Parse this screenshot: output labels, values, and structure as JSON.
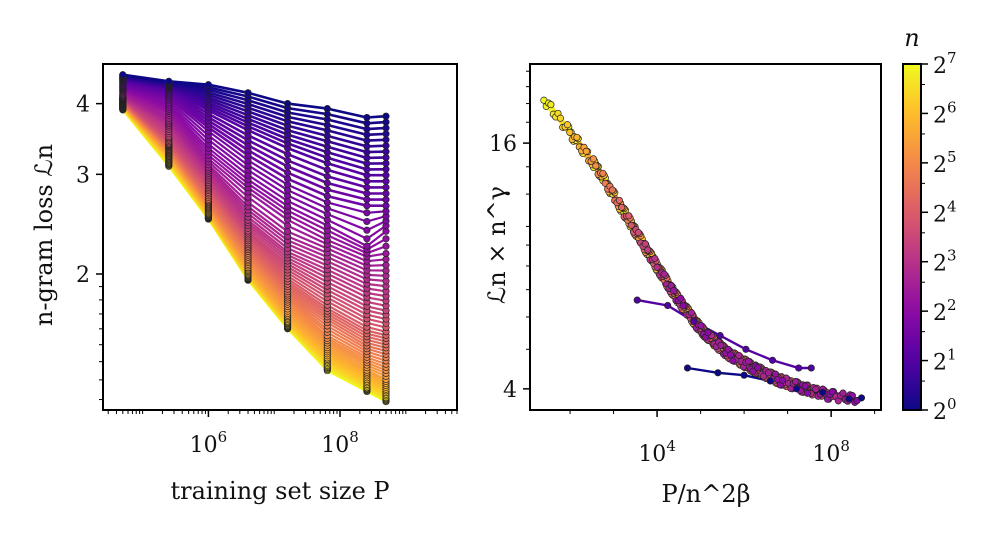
{
  "chart_data": [
    {
      "type": "line",
      "xlabel": "training set size P",
      "ylabel": "n-gram loss ℒn",
      "xscale": "log",
      "yscale": "log",
      "xlim": [
        25000.0,
        6000000000.0
      ],
      "ylim": [
        1.15,
        4.7
      ],
      "xticks": [
        {
          "base": "10",
          "exp": "6",
          "value": 1000000.0
        },
        {
          "base": "10",
          "exp": "8",
          "value": 100000000.0
        }
      ],
      "yticks": [
        {
          "label": "4",
          "value": 4
        },
        {
          "label": "3",
          "value": 3
        },
        {
          "label": "2",
          "value": 2
        }
      ],
      "x": [
        50000,
        250000,
        1000000,
        4000000,
        16000000,
        64000000,
        256000000,
        500000000
      ],
      "series": [
        {
          "n": 1,
          "values": [
            4.5,
            4.38,
            4.32,
            4.18,
            4.0,
            3.92,
            3.78,
            3.8
          ]
        },
        {
          "n": 2,
          "values": [
            4.4,
            4.25,
            3.9,
            3.6,
            3.35,
            3.15,
            3.0,
            3.0
          ]
        },
        {
          "n": 3,
          "values": [
            4.3,
            4.1,
            3.6,
            3.2,
            2.9,
            2.7,
            2.6,
            2.6
          ]
        },
        {
          "n": 4,
          "values": [
            4.25,
            3.95,
            3.35,
            2.95,
            2.65,
            2.45,
            2.25,
            2.4
          ]
        },
        {
          "n": 5,
          "values": [
            4.2,
            3.85,
            3.2,
            2.8,
            2.5,
            2.3,
            2.15,
            2.18
          ]
        },
        {
          "n": 6,
          "values": [
            4.15,
            3.75,
            3.1,
            2.65,
            2.35,
            2.2,
            2.05,
            2.05
          ]
        },
        {
          "n": 8,
          "values": [
            4.1,
            3.65,
            3.0,
            2.5,
            2.2,
            2.05,
            1.9,
            1.88
          ]
        },
        {
          "n": 11,
          "values": [
            4.08,
            3.5,
            2.9,
            2.38,
            2.08,
            1.9,
            1.75,
            1.72
          ]
        },
        {
          "n": 16,
          "values": [
            4.05,
            3.4,
            2.8,
            2.28,
            1.95,
            1.75,
            1.6,
            1.57
          ]
        },
        {
          "n": 23,
          "values": [
            4.02,
            3.35,
            2.7,
            2.2,
            1.85,
            1.65,
            1.5,
            1.47
          ]
        },
        {
          "n": 32,
          "values": [
            4.0,
            3.3,
            2.65,
            2.12,
            1.78,
            1.55,
            1.42,
            1.38
          ]
        },
        {
          "n": 45,
          "values": [
            3.98,
            3.25,
            2.6,
            2.05,
            1.7,
            1.48,
            1.35,
            1.3
          ]
        },
        {
          "n": 64,
          "values": [
            3.95,
            3.2,
            2.55,
            2.0,
            1.65,
            1.42,
            1.3,
            1.25
          ]
        },
        {
          "n": 90,
          "values": [
            3.93,
            3.15,
            2.52,
            1.97,
            1.62,
            1.38,
            1.26,
            1.21
          ]
        },
        {
          "n": 128,
          "values": [
            3.9,
            3.1,
            2.5,
            1.95,
            1.6,
            1.35,
            1.24,
            1.19
          ]
        }
      ]
    },
    {
      "type": "line",
      "xlabel": "P/n^2β",
      "ylabel": "ℒn × n^γ",
      "xscale": "log",
      "yscale": "log",
      "xlim": [
        12,
        1400000000.0
      ],
      "ylim": [
        3.55,
        25
      ],
      "xticks": [
        {
          "base": "10",
          "exp": "4",
          "value": 10000.0
        },
        {
          "base": "10",
          "exp": "8",
          "value": 100000000.0
        }
      ],
      "yticks": [
        {
          "label": "16",
          "value": 16
        },
        {
          "label": "4",
          "value": 4
        }
      ],
      "collapse_curve": {
        "x": [
          25,
          100,
          400,
          1600,
          6400,
          25600,
          100000,
          400000,
          1600000,
          6400000,
          25600000,
          100000000,
          400000000
        ],
        "y": [
          20.5,
          17.0,
          14.0,
          11.0,
          8.6,
          6.8,
          5.6,
          4.9,
          4.5,
          4.2,
          4.0,
          3.85,
          3.78
        ]
      },
      "series": [
        {
          "n": 1,
          "x": [
            50000,
            250000,
            1000000,
            4000000,
            16000000,
            64000000,
            256000000,
            500000000
          ],
          "y": [
            4.5,
            4.38,
            4.32,
            4.18,
            4.0,
            3.92,
            3.78,
            3.8
          ]
        },
        {
          "n": 2,
          "x": [
            3500,
            17500,
            70000,
            280000,
            1100000,
            4500000,
            18000000,
            35000000
          ],
          "y": [
            6.6,
            6.4,
            5.85,
            5.4,
            5.0,
            4.7,
            4.5,
            4.5
          ]
        }
      ]
    }
  ],
  "colorbar": {
    "label": "n",
    "colors": [
      "#0d0887",
      "#5302a3",
      "#8b0aa5",
      "#b83289",
      "#db5c68",
      "#f48849",
      "#febd2a",
      "#f0f921"
    ],
    "ticks": [
      {
        "base": "2",
        "exp": "0",
        "value": 1
      },
      {
        "base": "2",
        "exp": "1",
        "value": 2
      },
      {
        "base": "2",
        "exp": "2",
        "value": 4
      },
      {
        "base": "2",
        "exp": "3",
        "value": 8
      },
      {
        "base": "2",
        "exp": "4",
        "value": 16
      },
      {
        "base": "2",
        "exp": "5",
        "value": 32
      },
      {
        "base": "2",
        "exp": "6",
        "value": 64
      },
      {
        "base": "2",
        "exp": "7",
        "value": 128
      }
    ],
    "range": [
      1,
      128
    ]
  }
}
